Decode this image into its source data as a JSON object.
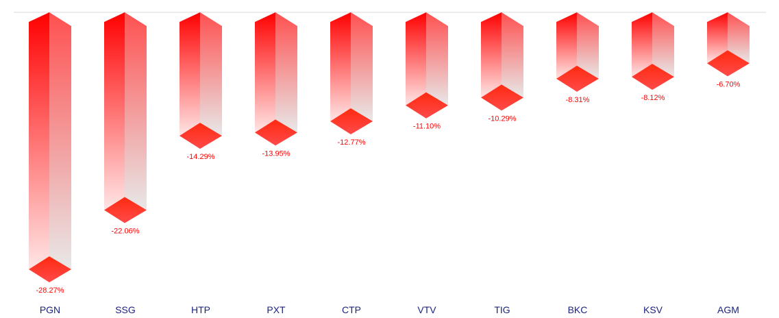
{
  "chart_data": {
    "type": "bar",
    "style": "3d-column",
    "categories": [
      "PGN",
      "SSG",
      "HTP",
      "PXT",
      "CTP",
      "VTV",
      "TIG",
      "BKC",
      "KSV",
      "AGM"
    ],
    "values": [
      -28.27,
      -22.06,
      -14.29,
      -13.95,
      -12.77,
      -11.1,
      -10.29,
      -8.31,
      -8.12,
      -6.7
    ],
    "value_labels": [
      "-28.27%",
      "-22.06%",
      "-14.29%",
      "-13.95%",
      "-12.77%",
      "-11.10%",
      "-10.29%",
      "-8.31%",
      "-8.12%",
      "-6.70%"
    ],
    "title": "",
    "xlabel": "",
    "ylabel": "",
    "ylim": [
      -28.27,
      0
    ],
    "grid": false,
    "colors": {
      "bar_top": "#ff0000",
      "bar_fade": "#ffe6e6",
      "side_top": "#ff5050",
      "side_fade": "#e8e8e8",
      "label": "#ff0000",
      "category": "#1a237e",
      "baseline": "#d9d9d9"
    }
  }
}
